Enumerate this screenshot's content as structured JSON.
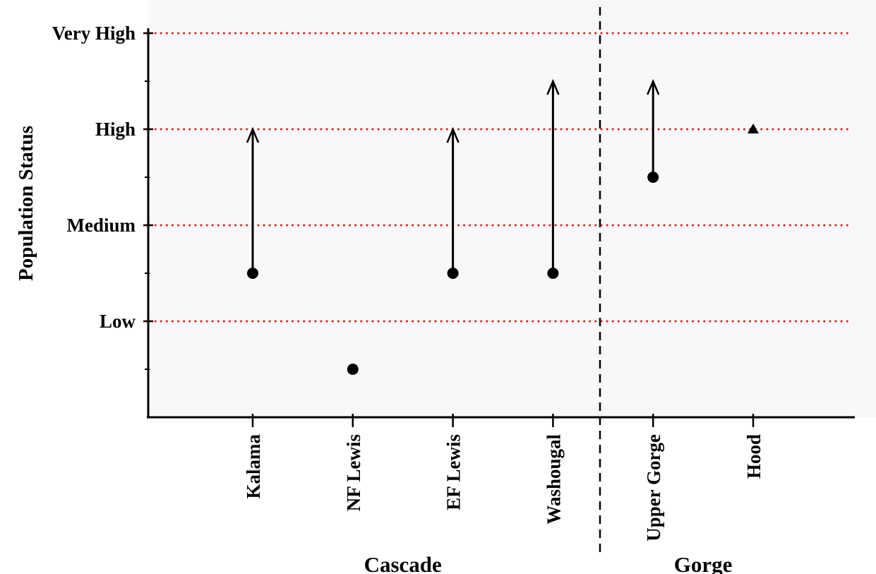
{
  "chart_data": {
    "type": "scatter",
    "title": "",
    "xlabel": "",
    "ylabel": "Population Status",
    "ylim": [
      0,
      4
    ],
    "y_ticks": [
      {
        "value": 1,
        "label": "Low"
      },
      {
        "value": 2,
        "label": "Medium"
      },
      {
        "value": 3,
        "label": "High"
      },
      {
        "value": 4,
        "label": "Very High"
      }
    ],
    "y_minor_ticks": [
      0.5,
      1.5,
      2.5,
      3.5
    ],
    "categories": [
      "Kalama",
      "NF Lewis",
      "EF Lewis",
      "Washougal",
      "Upper Gorge",
      "Hood"
    ],
    "groups": [
      {
        "label": "Cascade",
        "categories": [
          "Kalama",
          "NF Lewis",
          "EF Lewis",
          "Washougal"
        ]
      },
      {
        "label": "Gorge",
        "categories": [
          "Upper Gorge",
          "Hood"
        ]
      }
    ],
    "points": [
      {
        "category": "Kalama",
        "current": 1.5,
        "target": 3.0,
        "marker": "circle"
      },
      {
        "category": "NF Lewis",
        "current": 0.5,
        "target": null,
        "marker": "circle"
      },
      {
        "category": "EF Lewis",
        "current": 1.5,
        "target": 3.0,
        "marker": "circle"
      },
      {
        "category": "Washougal",
        "current": 1.5,
        "target": 3.5,
        "marker": "circle"
      },
      {
        "category": "Upper Gorge",
        "current": 2.5,
        "target": 3.5,
        "marker": "circle"
      },
      {
        "category": "Hood",
        "current": 3.0,
        "target": null,
        "marker": "triangle"
      }
    ],
    "reference_lines": [
      1,
      2,
      3,
      4
    ],
    "reference_line_color": "#e8191a",
    "marker_color": "#000000",
    "plot_background": "#f8f8f8",
    "grid": false,
    "legend": "none"
  }
}
